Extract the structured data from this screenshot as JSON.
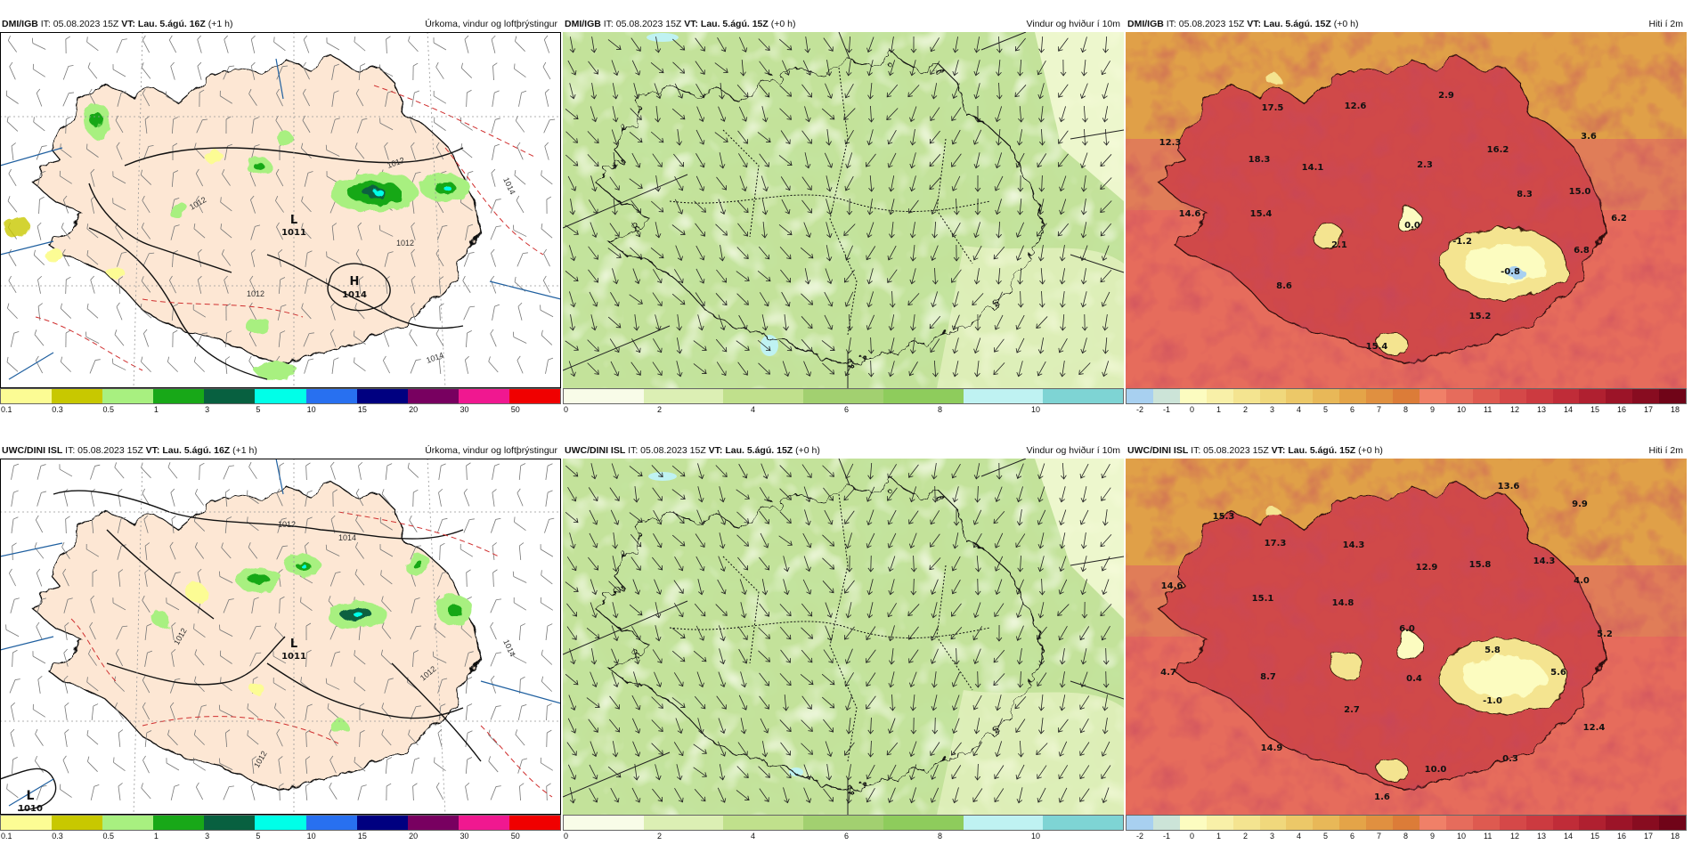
{
  "rows": [
    {
      "panels": [
        {
          "source": "DMI/IGB",
          "it_label": "IT: 05.08.2023 15Z",
          "vt_label": "VT: Lau. 5.ágú. 16Z",
          "offset": "(+1 h)",
          "parameter": "Úrkoma, vindur og loftþrýstingur",
          "isobars": [
            "1012",
            "1012",
            "1012",
            "1012",
            "1014",
            "1014"
          ],
          "pressure_centers": [
            {
              "letter": "L",
              "value": "1011"
            },
            {
              "letter": "H",
              "value": "1014"
            }
          ]
        },
        {
          "source": "DMI/IGB",
          "it_label": "IT: 05.08.2023 15Z",
          "vt_label": "VT: Lau. 5.ágú. 15Z",
          "offset": "(+0 h)",
          "parameter": "Vindur og hviður í 10m"
        },
        {
          "source": "DMI/IGB",
          "it_label": "IT: 05.08.2023 15Z",
          "vt_label": "VT: Lau. 5.ágú. 15Z",
          "offset": "(+0 h)",
          "parameter": "Hiti í 2m",
          "station_values": [
            "17.5",
            "12.6",
            "2.9",
            "12.3",
            "18.3",
            "14.1",
            "2.3",
            "16.2",
            "3.6",
            "8.3",
            "15.0",
            "14.6",
            "15.4",
            "2.1",
            "0.0",
            "-1.2",
            "6.2",
            "6.8",
            "-0.8",
            "8.6",
            "15.2",
            "15.4"
          ]
        }
      ]
    },
    {
      "panels": [
        {
          "source": "UWC/DINI ISL",
          "it_label": "IT: 05.08.2023 15Z",
          "vt_label": "VT: Lau. 5.ágú. 16Z",
          "offset": "(+1 h)",
          "parameter": "Úrkoma, vindur og loftþrýstingur",
          "isobars": [
            "1012",
            "1014",
            "1012",
            "1012",
            "1012",
            "1014"
          ],
          "pressure_centers": [
            {
              "letter": "L",
              "value": "1011"
            },
            {
              "letter": "L",
              "value": "1010"
            }
          ]
        },
        {
          "source": "UWC/DINI ISL",
          "it_label": "IT: 05.08.2023 15Z",
          "vt_label": "VT: Lau. 5.ágú. 15Z",
          "offset": "(+0 h)",
          "parameter": "Vindur og hviður í 10m"
        },
        {
          "source": "UWC/DINI ISL",
          "it_label": "IT: 05.08.2023 15Z",
          "vt_label": "VT: Lau. 5.ágú. 15Z",
          "offset": "(+0 h)",
          "parameter": "Hiti í 2m",
          "station_values": [
            "13.6",
            "15.3",
            "9.9",
            "17.3",
            "14.3",
            "12.9",
            "15.8",
            "14.3",
            "14.6",
            "15.1",
            "14.8",
            "6.0",
            "4.0",
            "5.8",
            "5.2",
            "4.7",
            "8.7",
            "0.4",
            "5.6",
            "2.7",
            "-1.0",
            "12.4",
            "14.9",
            "10.0",
            "0.3",
            "1.6"
          ]
        }
      ]
    }
  ],
  "legends": {
    "precipitation": {
      "labels": [
        "0.1",
        "0.3",
        "0.5",
        "1",
        "3",
        "5",
        "10",
        "15",
        "20",
        "30",
        "50"
      ],
      "colors": [
        "#fcfc94",
        "#c8c800",
        "#a8f080",
        "#18a818",
        "#086040",
        "#00ffe8",
        "#2870f0",
        "#000080",
        "#780060",
        "#f01890",
        "#f00000"
      ]
    },
    "wind": {
      "labels": [
        "0",
        "2",
        "4",
        "6",
        "8",
        "10"
      ],
      "colors": [
        "#f8fce8",
        "#dcefb4",
        "#c0e08c",
        "#a2d070",
        "#8ecc5c",
        "#bff2f2",
        "#7ed4d4"
      ]
    },
    "temperature": {
      "labels": [
        "-2",
        "-1",
        "0",
        "1",
        "2",
        "3",
        "4",
        "5",
        "6",
        "7",
        "8",
        "9",
        "10",
        "11",
        "12",
        "13",
        "14",
        "15",
        "16",
        "17",
        "18"
      ],
      "colors": [
        "#a8d0f0",
        "#cce4d8",
        "#fcfcc0",
        "#f8f0a8",
        "#f4e490",
        "#f0d87c",
        "#ecc868",
        "#e8b858",
        "#e4a448",
        "#e09040",
        "#dc7c38",
        "#f08068",
        "#e66c5c",
        "#de5a50",
        "#d54848",
        "#cc3a40",
        "#c02c38",
        "#b02030",
        "#9c1428",
        "#880c20",
        "#700418"
      ]
    }
  },
  "icons": {
    "wind_arrow": "wind-arrow-icon",
    "wind_barb": "wind-barb-icon"
  }
}
